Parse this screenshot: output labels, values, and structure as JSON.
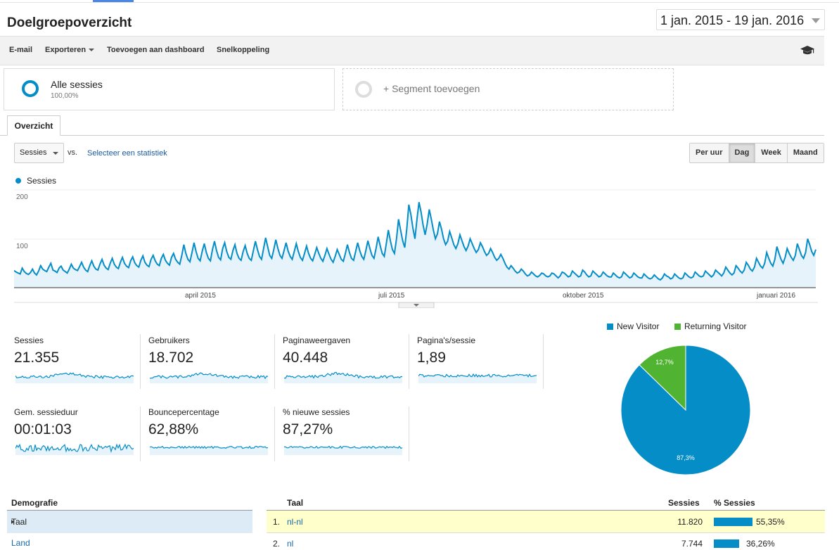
{
  "page": {
    "title": "Doelgroepoverzicht",
    "date_range": "1 jan. 2015 - 19 jan. 2016"
  },
  "toolbar": {
    "email": "E-mail",
    "export": "Exporteren",
    "add_dashboard": "Toevoegen aan dashboard",
    "shortcut": "Snelkoppeling",
    "help_icon": "graduation-cap-icon"
  },
  "segments": {
    "all": {
      "label": "Alle sessies",
      "percent": "100,00%"
    },
    "add": {
      "label": "+ Segment toevoegen"
    }
  },
  "tabs": {
    "overview": "Overzicht"
  },
  "controls": {
    "metric_select": "Sessies",
    "vs": "vs.",
    "select_metric": "Selecteer een statistiek",
    "granularity": [
      "Per uur",
      "Dag",
      "Week",
      "Maand"
    ],
    "active_granularity": "Dag"
  },
  "chart_data": {
    "type": "line",
    "series": [
      {
        "name": "Sessies",
        "color": "#058dc7"
      }
    ],
    "y_ticks": [
      "200",
      "100"
    ],
    "ylim": [
      0,
      200
    ],
    "x_labels": [
      "april 2015",
      "juli 2015",
      "oktober 2015",
      "januari 2016"
    ],
    "x_range": [
      "2015-01-01",
      "2016-01-19"
    ],
    "values": [
      35,
      32,
      30,
      28,
      40,
      33,
      29,
      27,
      31,
      38,
      30,
      26,
      34,
      45,
      38,
      35,
      33,
      42,
      50,
      36,
      34,
      31,
      40,
      44,
      36,
      33,
      30,
      38,
      48,
      40,
      37,
      35,
      43,
      52,
      42,
      36,
      33,
      45,
      55,
      44,
      38,
      36,
      48,
      58,
      46,
      40,
      37,
      50,
      60,
      48,
      42,
      39,
      52,
      62,
      50,
      44,
      41,
      55,
      63,
      51,
      45,
      42,
      56,
      65,
      52,
      46,
      43,
      58,
      66,
      55,
      48,
      45,
      60,
      68,
      56,
      50,
      46,
      62,
      70,
      58,
      52,
      48,
      66,
      88,
      70,
      58,
      53,
      72,
      92,
      74,
      60,
      55,
      75,
      90,
      72,
      60,
      55,
      78,
      95,
      76,
      62,
      57,
      80,
      92,
      74,
      62,
      58,
      76,
      88,
      70,
      60,
      56,
      74,
      86,
      70,
      60,
      56,
      76,
      95,
      78,
      64,
      58,
      80,
      102,
      84,
      66,
      60,
      78,
      98,
      80,
      66,
      60,
      76,
      92,
      75,
      64,
      58,
      74,
      90,
      74,
      62,
      56,
      70,
      85,
      70,
      60,
      55,
      68,
      82,
      70,
      60,
      54,
      66,
      80,
      68,
      58,
      52,
      64,
      78,
      68,
      58,
      54,
      70,
      88,
      72,
      60,
      56,
      74,
      92,
      76,
      64,
      58,
      76,
      96,
      80,
      66,
      60,
      80,
      104,
      86,
      70,
      64,
      90,
      118,
      96,
      78,
      70,
      100,
      140,
      118,
      96,
      82,
      120,
      170,
      150,
      122,
      100,
      140,
      175,
      155,
      128,
      108,
      130,
      160,
      140,
      118,
      100,
      110,
      135,
      120,
      100,
      88,
      95,
      115,
      102,
      88,
      80,
      90,
      108,
      96,
      84,
      76,
      85,
      100,
      90,
      80,
      72,
      78,
      92,
      84,
      74,
      66,
      70,
      80,
      72,
      62,
      56,
      60,
      68,
      60,
      50,
      42,
      38,
      45,
      40,
      34,
      30,
      32,
      38,
      34,
      28,
      24,
      26,
      32,
      28,
      24,
      22,
      25,
      30,
      28,
      24,
      22,
      24,
      30,
      28,
      24,
      20,
      24,
      32,
      30,
      26,
      22,
      24,
      34,
      30,
      26,
      22,
      24,
      36,
      32,
      26,
      22,
      24,
      34,
      30,
      26,
      22,
      24,
      32,
      28,
      24,
      22,
      22,
      30,
      26,
      22,
      20,
      22,
      32,
      28,
      24,
      20,
      22,
      30,
      26,
      22,
      20,
      20,
      28,
      24,
      20,
      18,
      20,
      26,
      22,
      18,
      16,
      20,
      28,
      24,
      22,
      18,
      20,
      28,
      24,
      20,
      18,
      20,
      30,
      26,
      22,
      20,
      22,
      32,
      28,
      24,
      22,
      24,
      34,
      30,
      26,
      22,
      26,
      36,
      32,
      28,
      24,
      30,
      42,
      36,
      30,
      26,
      30,
      45,
      40,
      34,
      30,
      36,
      52,
      46,
      38,
      34,
      42,
      60,
      52,
      44,
      40,
      50,
      72,
      60,
      50,
      44,
      58,
      84,
      70,
      58,
      50,
      62,
      80,
      70,
      62,
      56,
      66,
      90,
      78,
      66,
      60,
      72,
      100,
      88,
      74,
      66,
      78
    ]
  },
  "metrics": [
    {
      "label": "Sessies",
      "value": "21.355"
    },
    {
      "label": "Gebruikers",
      "value": "18.702"
    },
    {
      "label": "Paginaweergaven",
      "value": "40.448"
    },
    {
      "label": "Pagina's/sessie",
      "value": "1,89"
    },
    {
      "label": "Gem. sessieduur",
      "value": "00:01:03"
    },
    {
      "label": "Bouncepercentage",
      "value": "62,88%"
    },
    {
      "label": "% nieuwe sessies",
      "value": "87,27%"
    }
  ],
  "pie": {
    "legend": [
      {
        "label": "New Visitor",
        "color": "#058dc7"
      },
      {
        "label": "Returning Visitor",
        "color": "#50b432"
      }
    ],
    "slices": [
      {
        "label": "87,3%",
        "value": 87.3,
        "color": "#058dc7"
      },
      {
        "label": "12,7%",
        "value": 12.7,
        "color": "#50b432"
      }
    ]
  },
  "demographics": {
    "header": "Demografie",
    "items": [
      "Taal",
      "Land"
    ]
  },
  "table": {
    "headers": {
      "dimension": "Taal",
      "sessions": "Sessies",
      "pct": "% Sessies"
    },
    "rows": [
      {
        "index": "1.",
        "name": "nl-nl",
        "sessions": "11.820",
        "pct": "55,35%",
        "pct_value": 55.35
      },
      {
        "index": "2.",
        "name": "nl",
        "sessions": "7.744",
        "pct": "36,26%",
        "pct_value": 36.26
      }
    ]
  }
}
